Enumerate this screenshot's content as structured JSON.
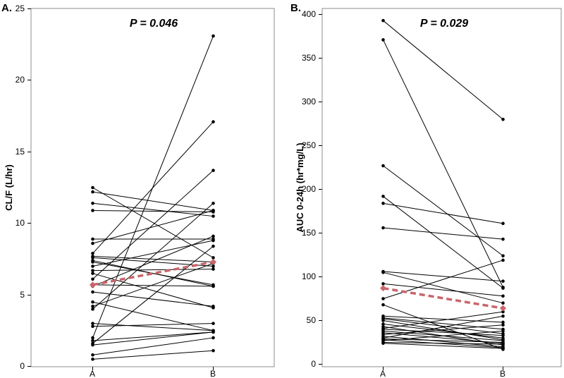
{
  "chart_data": [
    {
      "type": "paired-line",
      "panel_label": "A.",
      "p_value": "P = 0.046",
      "ylabel": "CL/F (L/hr)",
      "categories": [
        "A",
        "B"
      ],
      "ylim": [
        0,
        25
      ],
      "yticks": [
        0,
        5,
        10,
        15,
        20,
        25
      ],
      "pairs": [
        [
          12.5,
          7.6
        ],
        [
          12.2,
          10.9
        ],
        [
          11.4,
          10.5
        ],
        [
          10.9,
          10.8
        ],
        [
          8.9,
          8.9
        ],
        [
          8.6,
          10.9
        ],
        [
          7.9,
          17.1
        ],
        [
          7.7,
          7.3
        ],
        [
          7.6,
          7.0
        ],
        [
          7.4,
          5.6
        ],
        [
          7.3,
          5.7
        ],
        [
          7.0,
          8.8
        ],
        [
          6.7,
          6.8
        ],
        [
          6.5,
          4.1
        ],
        [
          6.1,
          13.7
        ],
        [
          5.7,
          5.6
        ],
        [
          5.6,
          9.1
        ],
        [
          5.2,
          4.2
        ],
        [
          4.5,
          2.5
        ],
        [
          4.2,
          7.2
        ],
        [
          4.0,
          11.4
        ],
        [
          3.0,
          2.5
        ],
        [
          2.8,
          3.0
        ],
        [
          2.0,
          23.1
        ],
        [
          1.8,
          2.4
        ],
        [
          1.6,
          8.4
        ],
        [
          1.5,
          2.4
        ],
        [
          0.8,
          2.0
        ],
        [
          0.5,
          1.1
        ]
      ],
      "mean": [
        5.7,
        7.3
      ],
      "mean_color": "#c9656b"
    },
    {
      "type": "paired-line",
      "panel_label": "B.",
      "p_value": "P = 0.029",
      "ylabel": "AUC 0-24h (hr*mg/L)",
      "categories": [
        "A",
        "B"
      ],
      "ylim": [
        0,
        400
      ],
      "yticks": [
        0,
        50,
        100,
        150,
        200,
        250,
        300,
        350,
        400
      ],
      "pairs": [
        [
          393,
          280
        ],
        [
          371,
          88
        ],
        [
          227,
          124
        ],
        [
          192,
          87
        ],
        [
          184,
          161
        ],
        [
          156,
          143
        ],
        [
          106,
          95
        ],
        [
          105,
          70
        ],
        [
          92,
          78
        ],
        [
          75,
          119
        ],
        [
          68,
          17
        ],
        [
          55,
          48
        ],
        [
          53,
          40
        ],
        [
          52,
          35
        ],
        [
          50,
          28
        ],
        [
          46,
          30
        ],
        [
          43,
          22
        ],
        [
          41,
          60
        ],
        [
          40,
          33
        ],
        [
          38,
          27
        ],
        [
          36,
          24
        ],
        [
          34,
          45
        ],
        [
          32,
          20
        ],
        [
          30,
          55
        ],
        [
          29,
          25
        ],
        [
          28,
          19
        ],
        [
          27,
          38
        ],
        [
          25,
          23
        ],
        [
          24,
          18
        ]
      ],
      "mean": [
        87,
        64
      ],
      "mean_color": "#c9656b"
    }
  ]
}
